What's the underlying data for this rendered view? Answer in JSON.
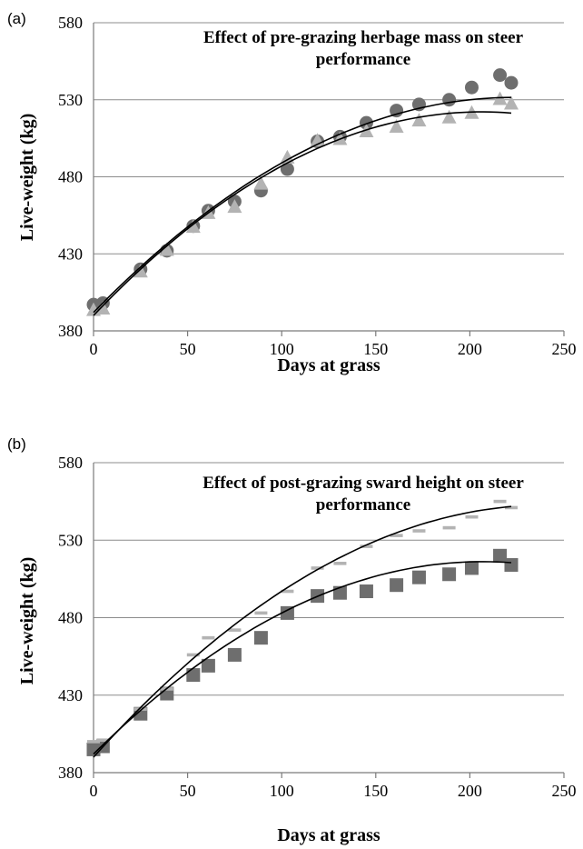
{
  "chart_data": [
    {
      "panel_label": "(a)",
      "type": "scatter",
      "title_lines": [
        "Effect of pre-grazing herbage mass on steer",
        "performance"
      ],
      "xlabel": "Days at grass",
      "ylabel": "Live-weight (kg)",
      "xlim": [
        0,
        250
      ],
      "ylim": [
        380,
        580
      ],
      "xticks": [
        "0",
        "50",
        "100",
        "150",
        "200",
        "250"
      ],
      "yticks": [
        "380",
        "430",
        "480",
        "530",
        "580"
      ],
      "grid": "horizontal",
      "series": [
        {
          "marker": "circle",
          "color": "#6e6e6e",
          "x": [
            0,
            5,
            25,
            39,
            53,
            61,
            75,
            89,
            103,
            119,
            131,
            145,
            161,
            173,
            189,
            201,
            216,
            222
          ],
          "y": [
            397,
            398,
            420,
            432,
            448,
            458,
            464,
            471,
            485,
            503,
            506,
            515,
            523,
            527,
            530,
            538,
            546,
            541
          ],
          "fit": [
            392,
            1.25,
            -0.0028
          ]
        },
        {
          "marker": "triangle",
          "color": "#b3b3b3",
          "x": [
            0,
            5,
            25,
            39,
            53,
            61,
            75,
            89,
            103,
            119,
            131,
            145,
            161,
            173,
            189,
            201,
            216,
            222
          ],
          "y": [
            393,
            394,
            418,
            432,
            447,
            456,
            460,
            475,
            492,
            503,
            504,
            509,
            512,
            516,
            518,
            521,
            530,
            527
          ],
          "fit": [
            390,
            1.28,
            -0.0031
          ]
        }
      ]
    },
    {
      "panel_label": "(b)",
      "type": "scatter",
      "title_lines": [
        "Effect of post-grazing sward height on steer",
        "performance"
      ],
      "xlabel": "Days at grass",
      "ylabel": "Live-weight (kg)",
      "xlim": [
        0,
        250
      ],
      "ylim": [
        380,
        580
      ],
      "xticks": [
        "0",
        "50",
        "100",
        "150",
        "200",
        "250"
      ],
      "yticks": [
        "380",
        "430",
        "480",
        "530",
        "580"
      ],
      "grid": "horizontal",
      "series": [
        {
          "marker": "square",
          "color": "#6e6e6e",
          "x": [
            0,
            5,
            25,
            39,
            53,
            61,
            75,
            89,
            103,
            119,
            131,
            145,
            161,
            173,
            189,
            201,
            216,
            222
          ],
          "y": [
            395,
            397,
            418,
            431,
            443,
            449,
            456,
            467,
            483,
            494,
            496,
            497,
            501,
            506,
            508,
            512,
            520,
            514
          ],
          "fit": [
            392,
            1.2,
            -0.0029
          ]
        },
        {
          "marker": "dash",
          "color": "#b3b3b3",
          "x": [
            0,
            5,
            25,
            39,
            53,
            61,
            75,
            89,
            103,
            119,
            131,
            145,
            161,
            173,
            189,
            201,
            216,
            222
          ],
          "y": [
            400,
            401,
            421,
            434,
            456,
            467,
            472,
            483,
            497,
            512,
            515,
            526,
            533,
            536,
            538,
            545,
            555,
            551
          ],
          "fit": [
            390,
            1.35,
            -0.0028
          ]
        }
      ]
    }
  ]
}
